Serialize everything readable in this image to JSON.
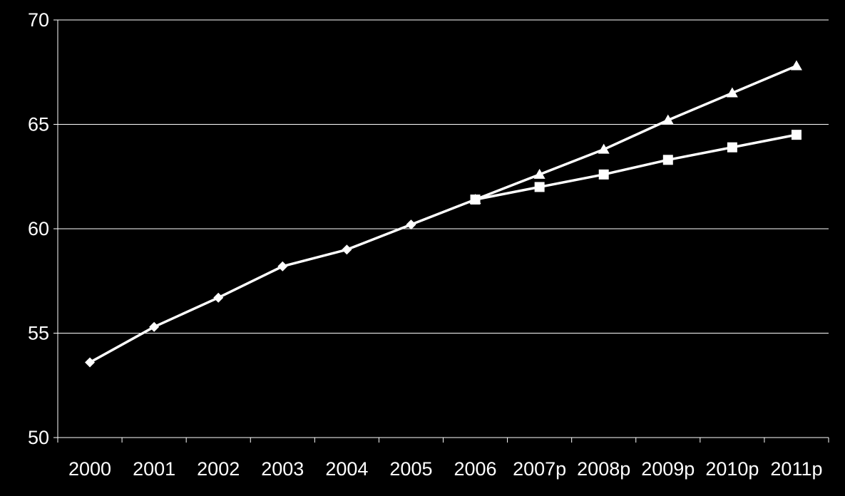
{
  "chart_data": {
    "type": "line",
    "title": "",
    "xlabel": "",
    "ylabel": "",
    "categories": [
      "2000",
      "2001",
      "2002",
      "2003",
      "2004",
      "2005",
      "2006",
      "2007p",
      "2008p",
      "2009p",
      "2010p",
      "2011p"
    ],
    "ylim": [
      50,
      70
    ],
    "yticks": [
      50,
      55,
      60,
      65,
      70
    ],
    "grid": true,
    "legend": "none",
    "series": [
      {
        "marker": "diamond",
        "color": "#ffffff",
        "values": [
          53.6,
          55.3,
          56.7,
          58.2,
          59.0,
          60.2,
          61.4,
          null,
          null,
          null,
          null,
          null
        ]
      },
      {
        "marker": "triangle",
        "color": "#ffffff",
        "values": [
          null,
          null,
          null,
          null,
          null,
          null,
          61.4,
          62.6,
          63.8,
          65.2,
          66.5,
          67.8
        ]
      },
      {
        "marker": "square",
        "color": "#ffffff",
        "values": [
          null,
          null,
          null,
          null,
          null,
          null,
          61.4,
          62.0,
          62.6,
          63.3,
          63.9,
          64.5
        ]
      }
    ]
  }
}
